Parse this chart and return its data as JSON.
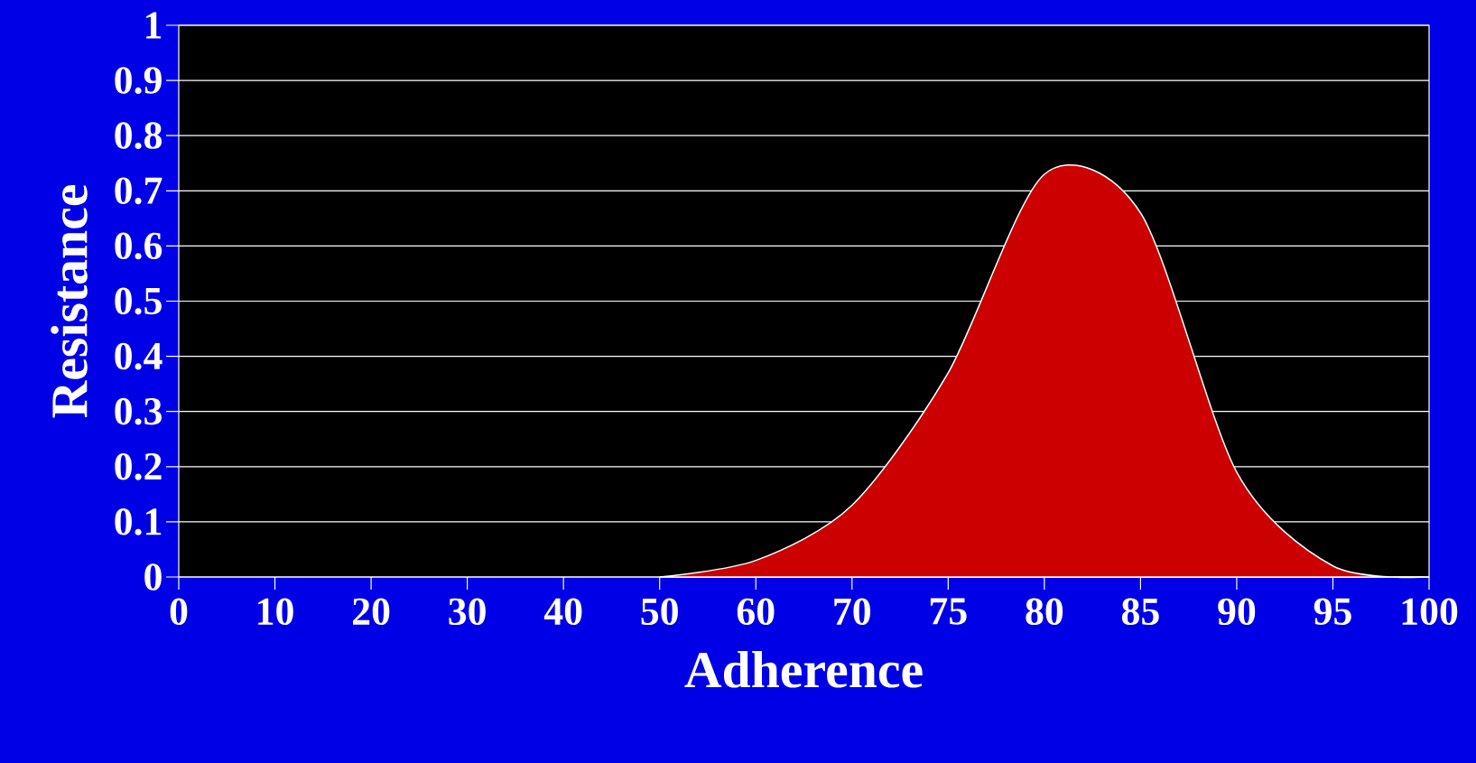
{
  "chart_data": {
    "type": "area",
    "xlabel": "Adherence",
    "ylabel": "Resistance",
    "categories": [
      "0",
      "10",
      "20",
      "30",
      "40",
      "50",
      "60",
      "70",
      "75",
      "80",
      "85",
      "90",
      "95",
      "100"
    ],
    "values": [
      null,
      null,
      null,
      null,
      null,
      0,
      0.03,
      0.13,
      0.37,
      0.73,
      0.66,
      0.19,
      0.02,
      0
    ],
    "color": "#cc0000",
    "ylim": [
      0,
      1
    ],
    "yticks": [
      0,
      0.1,
      0.2,
      0.3,
      0.4,
      0.5,
      0.6,
      0.7,
      0.8,
      0.9,
      1
    ],
    "grid": "y"
  }
}
